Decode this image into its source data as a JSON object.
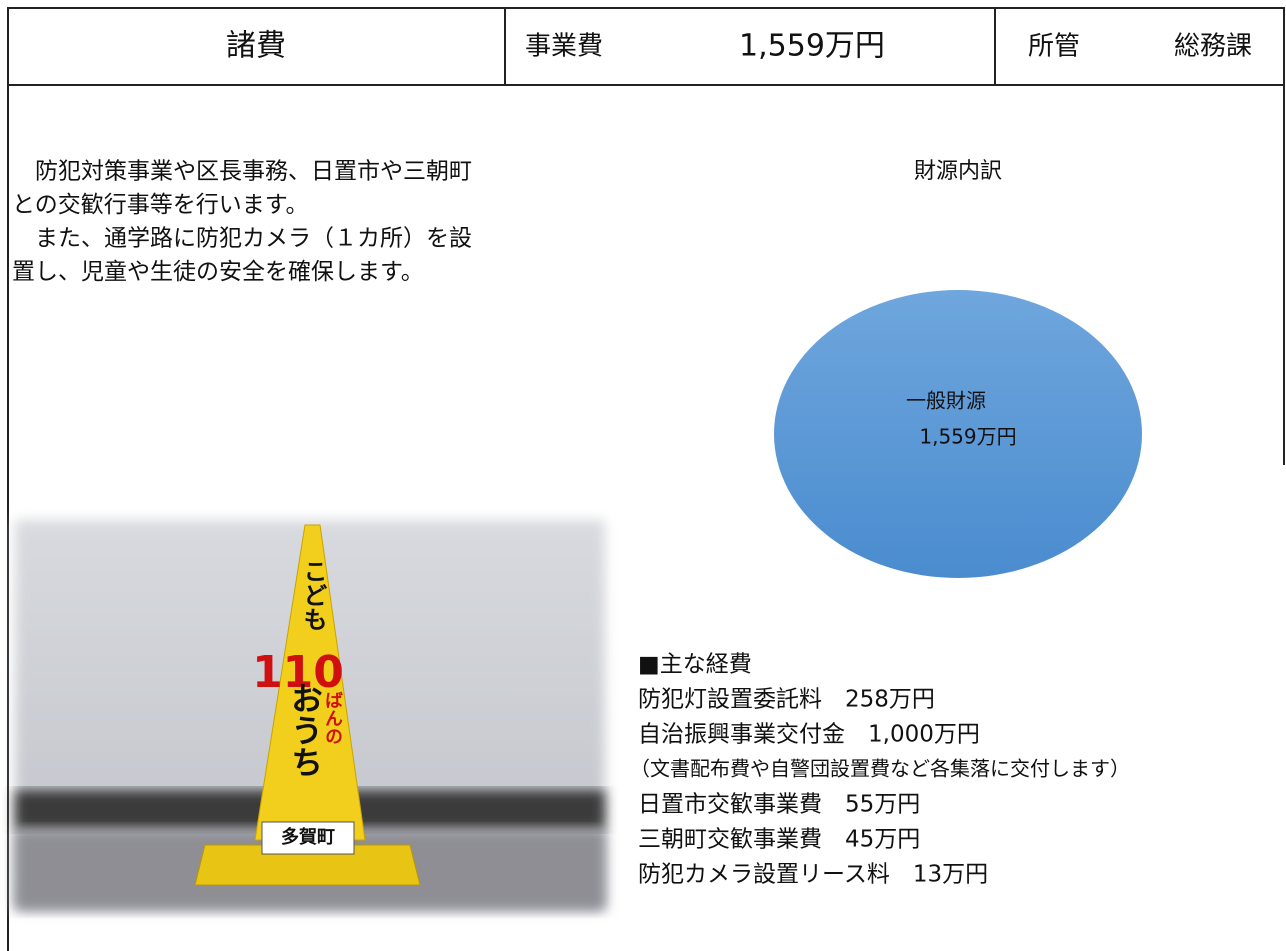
{
  "header": {
    "title": "諸費",
    "cost_label": "事業費",
    "cost": "1,559万円",
    "dept_label": "所管",
    "dept": "総務課"
  },
  "description": {
    "lines": [
      "　防犯対策事業や区長事務、日置市や三朝町",
      "との交歓行事等を行います。",
      "　また、通学路に防犯カメラ（１カ所）を設",
      "置し、児童や生徒の安全を確保します。"
    ]
  },
  "chart_data": {
    "type": "pie",
    "title": "財源内訳",
    "categories": [
      "一般財源"
    ],
    "values": [
      1559
    ],
    "value_labels": [
      "1,559万円"
    ],
    "colors": [
      "#5b9bd5"
    ]
  },
  "photo": {
    "labels": [
      "こども",
      "110",
      "ばんの",
      "おうち",
      "多賀町"
    ]
  },
  "expenses": {
    "heading": "■主な経費",
    "items": [
      "防犯灯設置委託料　258万円",
      "自治振興事業交付金　1,000万円",
      "（文書配布費や自警団設置費など各集落に交付します）",
      "日置市交歓事業費　55万円",
      "三朝町交歓事業費　45万円",
      "防犯カメラ設置リース料　13万円"
    ]
  }
}
